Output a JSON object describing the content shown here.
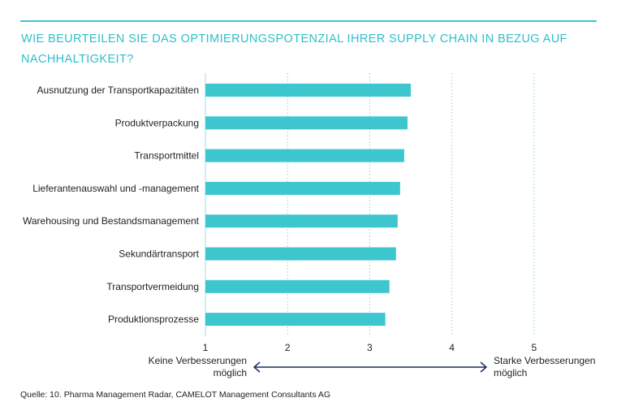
{
  "title": "WIE BEURTEILEN SIE DAS OPTIMIERUNGSPOTENZIAL IHRER SUPPLY CHAIN IN BEZUG AUF NACHHALTIGKEIT?",
  "source": "Quelle: 10. Pharma Management Radar, CAMELOT Management Consultants AG",
  "chart_data": {
    "type": "bar",
    "orientation": "horizontal",
    "title": "WIE BEURTEILEN SIE DAS OPTIMIERUNGSPOTENZIAL IHRER SUPPLY CHAIN IN BEZUG AUF NACHHALTIGKEIT?",
    "categories": [
      "Ausnutzung der Transportkapazitäten",
      "Produktverpackung",
      "Transportmittel",
      "Lieferantenauswahl und -management",
      "Warehousing und Bestandsmanagement",
      "Sekundärtransport",
      "Transportvermeidung",
      "Produktionsprozesse"
    ],
    "values": [
      3.5,
      3.46,
      3.42,
      3.37,
      3.34,
      3.32,
      3.24,
      3.19
    ],
    "xlim": [
      1,
      5
    ],
    "xticks": [
      "1",
      "2",
      "3",
      "4",
      "5"
    ],
    "scale_low_label": [
      "Keine Verbesserungen",
      "möglich"
    ],
    "scale_high_label": [
      "Starke Verbesserungen",
      "möglich"
    ],
    "grid": true,
    "bar_color": "#3ec6cf",
    "arrow_color": "#1d2f5e"
  }
}
